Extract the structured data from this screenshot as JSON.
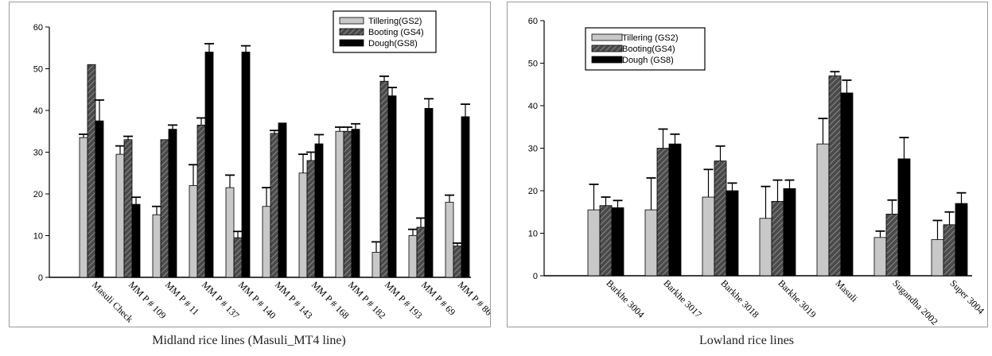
{
  "captions": {
    "left": "Midland rice lines (Masuli_MT4 line)",
    "right": "Lowland rice lines"
  },
  "colors": {
    "tillering": "#c8c8c8",
    "booting_bg": "#4a4a4a",
    "booting_hatch": "#9a9a9a",
    "dough": "#000000",
    "axis": "#000000"
  },
  "chart_data": [
    {
      "type": "bar",
      "title": "",
      "xlabel": "",
      "ylabel": "",
      "ylim": [
        0,
        60
      ],
      "yticks": [
        "0",
        "10",
        "20",
        "30",
        "40",
        "50",
        "60"
      ],
      "legend_position": "top-right",
      "categories": [
        "Masuli Check",
        "MM P # 109",
        "MM P # 11",
        "MM P # 137",
        "MM P # 140",
        "MM P # 143",
        "MM P # 168",
        "MM P # 182",
        "MM P # 193",
        "MM P # 69",
        "MM P # 86"
      ],
      "series": [
        {
          "name": "Tillering(GS2)",
          "values": [
            33.5,
            29.5,
            15,
            22,
            21.5,
            17,
            25,
            35,
            6,
            10,
            18
          ],
          "errors": [
            0.8,
            2,
            2,
            5,
            3,
            4.5,
            4.5,
            1,
            2.5,
            1.5,
            1.7
          ]
        },
        {
          "name": "Booting (GS4)",
          "values": [
            51,
            33,
            33,
            36.5,
            9.5,
            34.5,
            28,
            35,
            47,
            12,
            7.5
          ],
          "errors": [
            0,
            0.8,
            0,
            1.7,
            1.5,
            0.7,
            2,
            1,
            1.2,
            2.2,
            0.7
          ]
        },
        {
          "name": "Dough(GS8)",
          "values": [
            37.5,
            17.5,
            35.5,
            54,
            54,
            37,
            32,
            35.5,
            43.5,
            40.5,
            38.5
          ],
          "errors": [
            5,
            1.7,
            1,
            2,
            1.5,
            0,
            2.2,
            1.3,
            2,
            2.3,
            3
          ]
        }
      ]
    },
    {
      "type": "bar",
      "title": "",
      "xlabel": "",
      "ylabel": "",
      "ylim": [
        0,
        60
      ],
      "yticks": [
        "0",
        "10",
        "20",
        "30",
        "40",
        "50",
        "60"
      ],
      "legend_position": "top-left",
      "categories": [
        "Barkhe 3004",
        "Barkhe 3017",
        "Barkhe 3018",
        "Barkhe 3019",
        "Masuli",
        "Sugandha 2002",
        "Super 3004"
      ],
      "series": [
        {
          "name": "Tillering (GS2)",
          "values": [
            15.5,
            15.5,
            18.5,
            13.5,
            31,
            9,
            8.5
          ],
          "errors": [
            6,
            7.5,
            6.5,
            7.5,
            6,
            1.5,
            4.5
          ]
        },
        {
          "name": "Booting(GS4)",
          "values": [
            16.5,
            30,
            27,
            17.5,
            47,
            14.5,
            12
          ],
          "errors": [
            2,
            4.5,
            3.5,
            5,
            1,
            3.3,
            3
          ]
        },
        {
          "name": "Dough (GS8)",
          "values": [
            16,
            31,
            20,
            20.5,
            43,
            27.5,
            17
          ],
          "errors": [
            1.7,
            2.3,
            1.8,
            2,
            3,
            5,
            2.5
          ]
        }
      ]
    }
  ]
}
